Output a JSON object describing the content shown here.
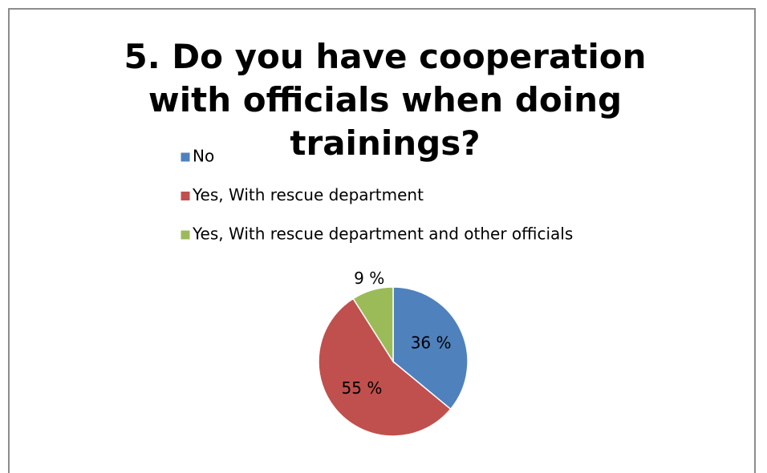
{
  "chart_data": {
    "type": "pie",
    "title": "5. Do you have cooperation with officials when doing trainings?",
    "categories": [
      "No",
      "Yes, With rescue department",
      "Yes, With rescue department and other officials"
    ],
    "values": [
      36,
      55,
      9
    ],
    "value_labels": [
      "36 %",
      "55 %",
      "9 %"
    ],
    "colors": [
      "#4f81bd",
      "#c0504d",
      "#9bbb59"
    ],
    "legend": "top"
  }
}
